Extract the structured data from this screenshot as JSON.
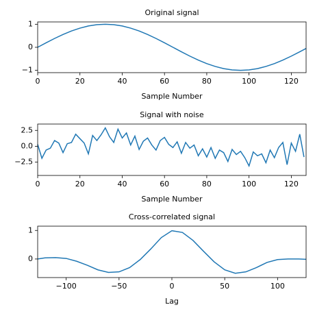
{
  "chart_data": [
    {
      "type": "line",
      "title": "Original signal",
      "x_label": "Sample Number",
      "x": [
        0,
        4,
        8,
        12,
        16,
        20,
        24,
        28,
        32,
        36,
        40,
        44,
        48,
        52,
        56,
        60,
        64,
        68,
        72,
        76,
        80,
        84,
        88,
        92,
        96,
        100,
        104,
        108,
        112,
        116,
        120,
        124,
        127
      ],
      "series": [
        {
          "color": "#1f77b4",
          "values": [
            0,
            0.195,
            0.383,
            0.556,
            0.707,
            0.831,
            0.924,
            0.981,
            1,
            0.981,
            0.924,
            0.831,
            0.707,
            0.556,
            0.383,
            0.195,
            0,
            -0.195,
            -0.383,
            -0.556,
            -0.707,
            -0.831,
            -0.924,
            -0.981,
            -1,
            -0.981,
            -0.924,
            -0.831,
            -0.707,
            -0.556,
            -0.383,
            -0.195,
            -0.049
          ]
        }
      ],
      "xlim": [
        0,
        127
      ],
      "ylim": [
        -1.1,
        1.1
      ],
      "xticks": [
        0,
        20,
        40,
        60,
        80,
        100,
        120
      ],
      "yticks": [
        {
          "value": -1,
          "label": "−1"
        },
        0,
        1
      ]
    },
    {
      "type": "line",
      "title": "Signal with noise",
      "x_label": "Sample Number",
      "x": [
        0,
        2,
        4,
        6,
        8,
        10,
        12,
        14,
        16,
        18,
        20,
        22,
        24,
        26,
        28,
        30,
        32,
        34,
        36,
        38,
        40,
        42,
        44,
        46,
        48,
        50,
        52,
        54,
        56,
        58,
        60,
        62,
        64,
        66,
        68,
        70,
        72,
        74,
        76,
        78,
        80,
        82,
        84,
        86,
        88,
        90,
        92,
        94,
        96,
        98,
        100,
        102,
        104,
        106,
        108,
        110,
        112,
        114,
        116,
        118,
        120,
        122,
        124,
        126
      ],
      "series": [
        {
          "color": "#1f77b4",
          "values": [
            0.3,
            -1.9,
            -0.6,
            -0.3,
            0.9,
            0.5,
            -1.0,
            0.4,
            0.6,
            1.9,
            1.2,
            0.5,
            -1.2,
            1.7,
            0.9,
            1.8,
            2.9,
            1.5,
            0.6,
            2.7,
            1.3,
            2.1,
            0.2,
            1.6,
            -0.5,
            0.8,
            1.3,
            0.2,
            -0.6,
            0.9,
            1.4,
            0.3,
            -0.2,
            0.7,
            -1.1,
            0.6,
            -0.3,
            0.2,
            -1.5,
            -0.4,
            -1.7,
            -0.2,
            -1.9,
            -0.6,
            -1.0,
            -2.4,
            -0.5,
            -1.3,
            -0.8,
            -1.8,
            -3.1,
            -0.9,
            -1.5,
            -1.2,
            -2.6,
            -0.6,
            -1.8,
            -0.2,
            0.6,
            -2.9,
            0.5,
            -0.8,
            1.9,
            -1.7
          ]
        }
      ],
      "xlim": [
        0,
        127
      ],
      "ylim": [
        -4.6,
        3.5
      ],
      "xticks": [
        0,
        20,
        40,
        60,
        80,
        100,
        120
      ],
      "yticks": [
        {
          "value": -2.5,
          "label": "−2.5"
        },
        {
          "value": 0,
          "label": "0.0"
        },
        2.5
      ]
    },
    {
      "type": "line",
      "title": "Cross-correlated signal",
      "x_label": "Lag",
      "x": [
        -127,
        -120,
        -110,
        -100,
        -90,
        -80,
        -70,
        -60,
        -50,
        -40,
        -30,
        -20,
        -10,
        0,
        10,
        20,
        30,
        40,
        50,
        60,
        70,
        80,
        90,
        100,
        110,
        120,
        127
      ],
      "series": [
        {
          "color": "#1f77b4",
          "values": [
            0.0,
            0.04,
            0.05,
            0.02,
            -0.08,
            -0.22,
            -0.38,
            -0.47,
            -0.45,
            -0.3,
            -0.02,
            0.35,
            0.75,
            0.99,
            0.93,
            0.65,
            0.27,
            -0.1,
            -0.38,
            -0.5,
            -0.45,
            -0.3,
            -0.12,
            -0.02,
            0.0,
            0.0,
            -0.01
          ]
        }
      ],
      "xlim": [
        -127,
        127
      ],
      "ylim": [
        -0.65,
        1.15
      ],
      "xticks": [
        {
          "value": -100,
          "label": "−100"
        },
        {
          "value": -50,
          "label": "−50"
        },
        0,
        50,
        100
      ],
      "yticks": [
        0,
        1
      ]
    }
  ]
}
